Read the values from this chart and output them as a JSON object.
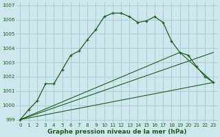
{
  "title": "Graphe pression niveau de la mer (hPa)",
  "bg_color": "#cce8ec",
  "grid_color": "#aacdd4",
  "line_color": "#1a5c1a",
  "xlim": [
    -0.5,
    23.5
  ],
  "ylim": [
    998.8,
    1007.2
  ],
  "xticks": [
    0,
    1,
    2,
    3,
    4,
    5,
    6,
    7,
    8,
    9,
    10,
    11,
    12,
    13,
    14,
    15,
    16,
    17,
    18,
    19,
    20,
    21,
    22,
    23
  ],
  "yticks": [
    999,
    1000,
    1001,
    1002,
    1003,
    1004,
    1005,
    1006,
    1007
  ],
  "series_main": [
    999.0,
    999.7,
    1000.3,
    1001.5,
    1001.5,
    1002.5,
    1003.5,
    1003.8,
    1004.6,
    1005.3,
    1006.2,
    1006.45,
    1006.45,
    1006.2,
    1005.8,
    1005.9,
    1006.2,
    1005.8,
    1004.5,
    1003.7,
    1003.5,
    1002.7,
    1002.0,
    1001.6
  ],
  "line1_x": [
    0,
    23
  ],
  "line1_y": [
    999.0,
    1001.6
  ],
  "line2_x": [
    0,
    19,
    23
  ],
  "line2_y": [
    999.0,
    1003.7,
    1001.6
  ],
  "line3_x": [
    0,
    23
  ],
  "line3_y": [
    999.0,
    1003.7
  ],
  "xlabel_fontsize": 6.5,
  "tick_fontsize": 5.2
}
